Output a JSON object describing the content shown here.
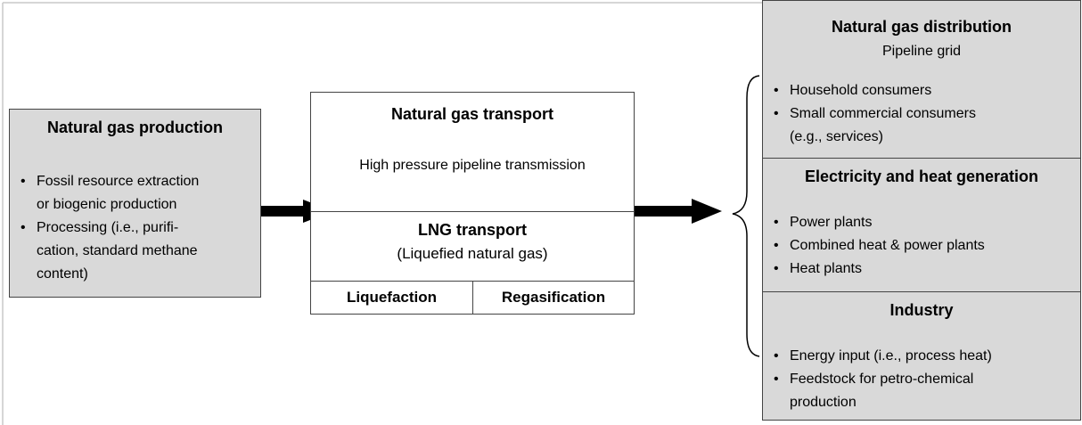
{
  "production": {
    "title": "Natural gas production",
    "items": [
      [
        "Fossil resource extraction",
        "or biogenic production"
      ],
      [
        "Processing (i.e., purifi-",
        "cation, standard methane",
        "content)"
      ]
    ]
  },
  "transport": {
    "pipeline": {
      "title": "Natural gas transport",
      "subtitle": "High pressure pipeline transmission"
    },
    "lng": {
      "title": "LNG transport",
      "subtitle": "(Liquefied natural gas)",
      "steps": [
        "Liquefaction",
        "Regasification"
      ]
    }
  },
  "uses": [
    {
      "title": "Natural gas distribution",
      "subtitle": "Pipeline grid",
      "items": [
        [
          "Household consumers"
        ],
        [
          "Small commercial consumers",
          "(e.g., services)"
        ]
      ]
    },
    {
      "title": "Electricity and heat generation",
      "items": [
        [
          "Power plants"
        ],
        [
          "Combined heat & power plants"
        ],
        [
          "Heat plants"
        ]
      ]
    },
    {
      "title": "Industry",
      "items": [
        [
          "Energy input (i.e., process heat)"
        ],
        [
          "Feedstock for petro-chemical",
          "production"
        ]
      ]
    }
  ]
}
